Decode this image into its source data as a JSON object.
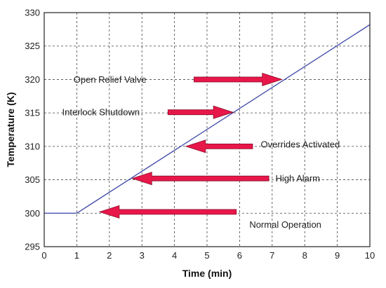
{
  "chart_data": {
    "type": "line",
    "title": "",
    "xlabel": "Time (min)",
    "ylabel": "Temperature (K)",
    "xlim": [
      0,
      10
    ],
    "ylim": [
      295,
      330
    ],
    "xticks": [
      0,
      1,
      2,
      3,
      4,
      5,
      6,
      7,
      8,
      9,
      10
    ],
    "yticks": [
      295,
      300,
      305,
      310,
      315,
      320,
      325,
      330
    ],
    "grid": true,
    "series": [
      {
        "color": "#3a46a8",
        "x": [
          0,
          1,
          10
        ],
        "y": [
          300,
          300,
          328.2
        ]
      }
    ],
    "annotations": [
      {
        "text": "Open Relief Valve",
        "text_x": 0.9,
        "text_y": 320,
        "anchor": "start",
        "arrow_from": [
          4.6,
          320
        ],
        "arrow_to": [
          7.3,
          320
        ]
      },
      {
        "text": "Interlock Shutdown",
        "text_x": 0.55,
        "text_y": 315.1,
        "anchor": "start",
        "arrow_from": [
          3.8,
          315.1
        ],
        "arrow_to": [
          5.8,
          315.1
        ]
      },
      {
        "text": "Overrides Activated",
        "text_x": 6.65,
        "text_y": 310.3,
        "anchor": "start",
        "arrow_from": [
          6.4,
          310
        ],
        "arrow_to": [
          4.35,
          310
        ]
      },
      {
        "text": "High Alarm",
        "text_x": 7.1,
        "text_y": 305.2,
        "anchor": "start",
        "arrow_from": [
          6.9,
          305.2
        ],
        "arrow_to": [
          2.7,
          305.2
        ]
      },
      {
        "text": "Normal Operation",
        "text_x": 6.3,
        "text_y": 298.3,
        "anchor": "start",
        "arrow_from": [
          5.9,
          300.2
        ],
        "arrow_to": [
          1.7,
          300.2
        ]
      }
    ],
    "arrow_color": "#e8174a"
  }
}
